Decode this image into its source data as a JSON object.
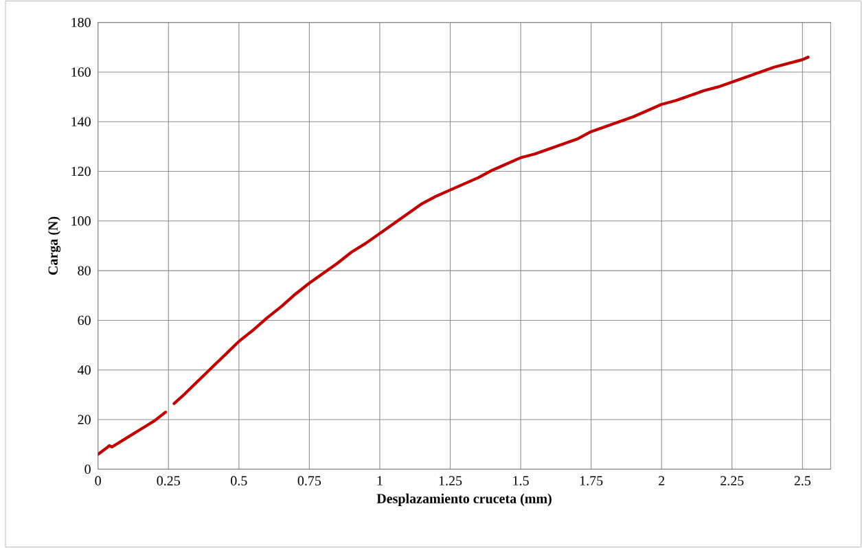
{
  "chart_data": {
    "type": "line",
    "xlabel": "Desplazamiento cruceta (mm)",
    "ylabel": "Carga (N)",
    "x": [
      0,
      0.03,
      0.04,
      0.05,
      0.1,
      0.15,
      0.2,
      0.24,
      0.255,
      0.27,
      0.3,
      0.35,
      0.4,
      0.45,
      0.5,
      0.55,
      0.6,
      0.65,
      0.7,
      0.75,
      0.8,
      0.85,
      0.9,
      0.95,
      1.0,
      1.05,
      1.1,
      1.15,
      1.2,
      1.25,
      1.3,
      1.35,
      1.4,
      1.45,
      1.5,
      1.55,
      1.6,
      1.65,
      1.7,
      1.75,
      1.8,
      1.85,
      1.9,
      1.95,
      2.0,
      2.05,
      2.1,
      2.15,
      2.2,
      2.25,
      2.3,
      2.35,
      2.4,
      2.45,
      2.5,
      2.52
    ],
    "series": [
      {
        "color": "#c00000",
        "values": [
          6,
          8.5,
          9.5,
          9,
          12.5,
          16,
          19.5,
          23,
          null,
          26.5,
          29.5,
          35,
          40.5,
          46,
          51.5,
          56,
          61,
          65.5,
          70.5,
          75,
          79,
          83,
          87.5,
          91,
          95,
          99,
          103,
          107,
          110,
          112.5,
          115,
          117.5,
          120.5,
          123,
          125.5,
          127,
          129,
          131,
          133,
          136,
          138,
          140,
          142,
          144.5,
          147,
          148.5,
          150.5,
          152.5,
          154,
          156,
          158,
          160,
          162,
          163.5,
          165,
          166
        ]
      }
    ],
    "xlim": [
      0,
      2.6
    ],
    "ylim": [
      0,
      180
    ],
    "xticks": [
      0,
      0.25,
      0.5,
      0.75,
      1,
      1.25,
      1.5,
      1.75,
      2,
      2.25,
      2.5
    ],
    "yticks": [
      0,
      20,
      40,
      60,
      80,
      100,
      120,
      140,
      160,
      180
    ],
    "grid": true,
    "marker": "none",
    "line_style": "solid"
  }
}
